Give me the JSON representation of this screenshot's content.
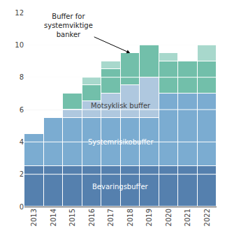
{
  "chart_data": {
    "type": "bar",
    "stacked": true,
    "grid": true,
    "categories": [
      "2013",
      "2014",
      "2015",
      "2016",
      "2017",
      "2018",
      "2019",
      "2020",
      "2021",
      "2022"
    ],
    "series": [
      {
        "name": "Bevaringsbuffer",
        "color": "#5580ae",
        "values": [
          2.5,
          2.5,
          2.5,
          2.5,
          2.5,
          2.5,
          2.5,
          2.5,
          2.5,
          2.5
        ]
      },
      {
        "name": "Systemrisikobuffer",
        "color": "#7bacd1",
        "values": [
          2.0,
          3.0,
          3.0,
          3.0,
          3.0,
          3.0,
          3.0,
          4.5,
          4.5,
          4.5
        ]
      },
      {
        "name": "Motsyklisk buffer",
        "color": "#afc8df",
        "values": [
          0.0,
          0.0,
          0.5,
          1.0,
          1.5,
          2.0,
          2.5,
          0.0,
          0.0,
          0.0
        ]
      },
      {
        "color": "#72bfaa",
        "values": [
          0.0,
          0.0,
          1.0,
          1.0,
          1.5,
          2.0,
          2.0,
          2.0,
          2.0,
          2.0
        ]
      },
      {
        "color": "#a8d8cc",
        "values": [
          0.0,
          0.0,
          0.0,
          0.5,
          0.5,
          0.0,
          0.0,
          0.5,
          0.0,
          1.0
        ]
      }
    ],
    "annotations": [
      "Buffer for\nsystemviktige\nbanker"
    ],
    "ylim": [
      0,
      12
    ],
    "yticks": [
      0,
      2,
      4,
      6,
      8,
      10,
      12
    ],
    "y2lim": [
      0,
      12
    ],
    "y2ticks": [
      0,
      2,
      4,
      6,
      8,
      10,
      12
    ]
  }
}
